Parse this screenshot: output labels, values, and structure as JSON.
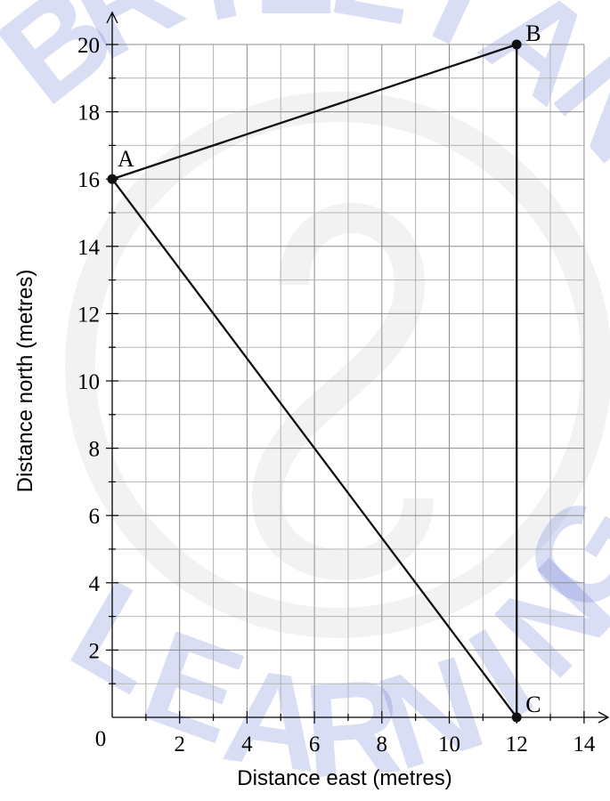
{
  "watermark": {
    "text": "BRILLIANT LEARNING",
    "color": "#2a44c8"
  },
  "axes": {
    "xlabel": "Distance east (metres)",
    "ylabel": "Distance north (metres)",
    "origin_label": "0",
    "xlim": [
      0,
      14
    ],
    "ylim": [
      0,
      20
    ],
    "minor_step": 1,
    "x_tick_labels": [
      "2",
      "4",
      "6",
      "8",
      "10",
      "12",
      "14"
    ],
    "y_tick_labels": [
      "2",
      "4",
      "6",
      "8",
      "10",
      "12",
      "14",
      "16",
      "18",
      "20"
    ]
  },
  "points": [
    {
      "label": "A",
      "x": 0,
      "y": 16
    },
    {
      "label": "B",
      "x": 12,
      "y": 20
    },
    {
      "label": "C",
      "x": 12,
      "y": 0
    }
  ],
  "segments": [
    [
      "A",
      "B"
    ],
    [
      "B",
      "C"
    ],
    [
      "C",
      "A"
    ]
  ]
}
